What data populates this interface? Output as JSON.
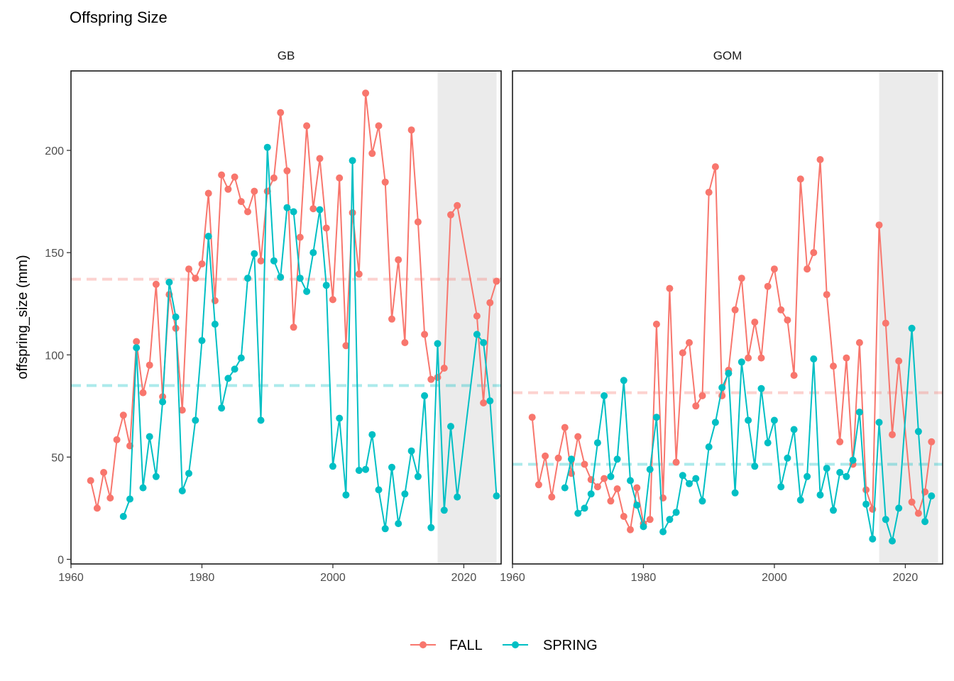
{
  "title": "Offspring Size",
  "ylabel": "offspring_size (mm)",
  "colors": {
    "FALL": "#F8766D",
    "SPRING": "#00BFC4",
    "shade": "#EBEBEB"
  },
  "chart_data": {
    "type": "line",
    "title": "Offspring Size",
    "xlabel": "",
    "ylabel": "offspring_size (mm)",
    "xlim": [
      1960,
      2025.7
    ],
    "ylim": [
      -2,
      234
    ],
    "x_ticks": [
      1960,
      1980,
      2000,
      2020
    ],
    "y_ticks": [
      0,
      50,
      100,
      150,
      200
    ],
    "legend": {
      "position": "bottom",
      "entries": [
        "FALL",
        "SPRING"
      ]
    },
    "grid": false,
    "shaded_x_range": [
      2016,
      2025
    ],
    "panels": [
      {
        "name": "GB",
        "reference_lines": {
          "FALL": 137,
          "SPRING": 85
        },
        "series": [
          {
            "name": "FALL",
            "points": [
              [
                1963,
                38.5
              ],
              [
                1964,
                25
              ],
              [
                1965,
                42.5
              ],
              [
                1966,
                30
              ],
              [
                1967,
                58.5
              ],
              [
                1968,
                70.5
              ],
              [
                1969,
                55.5
              ],
              [
                1970,
                106.5
              ],
              [
                1971,
                81.5
              ],
              [
                1972,
                95
              ],
              [
                1973,
                134.5
              ],
              [
                1974,
                79.5
              ],
              [
                1975,
                129.5
              ],
              [
                1976,
                113
              ],
              [
                1977,
                73
              ],
              [
                1978,
                142
              ],
              [
                1979,
                137.5
              ],
              [
                1980,
                144.5
              ],
              [
                1981,
                179
              ],
              [
                1982,
                126.5
              ],
              [
                1983,
                188
              ],
              [
                1984,
                181
              ],
              [
                1985,
                187
              ],
              [
                1986,
                175
              ],
              [
                1987,
                170
              ],
              [
                1988,
                180
              ],
              [
                1989,
                146
              ],
              [
                1990,
                180
              ],
              [
                1991,
                186.5
              ],
              [
                1992,
                218.5
              ],
              [
                1993,
                190
              ],
              [
                1994,
                113.5
              ],
              [
                1995,
                157.5
              ],
              [
                1996,
                212
              ],
              [
                1997,
                171.5
              ],
              [
                1998,
                196
              ],
              [
                1999,
                162
              ],
              [
                2000,
                127
              ],
              [
                2001,
                186.5
              ],
              [
                2002,
                104.5
              ],
              [
                2003,
                169.5
              ],
              [
                2004,
                139.5
              ],
              [
                2005,
                228
              ],
              [
                2006,
                198.5
              ],
              [
                2007,
                212
              ],
              [
                2008,
                184.5
              ],
              [
                2009,
                117.5
              ],
              [
                2010,
                146.5
              ],
              [
                2011,
                106
              ],
              [
                2012,
                210
              ],
              [
                2013,
                165
              ],
              [
                2014,
                110
              ],
              [
                2015,
                88
              ],
              [
                2016,
                89
              ],
              [
                2017,
                93.5
              ],
              [
                2018,
                168.5
              ],
              [
                2019,
                173
              ],
              [
                2022,
                119
              ],
              [
                2023,
                76.5
              ],
              [
                2024,
                125.5
              ],
              [
                2025,
                136
              ]
            ]
          },
          {
            "name": "SPRING",
            "points": [
              [
                1968,
                21
              ],
              [
                1969,
                29.5
              ],
              [
                1970,
                103.5
              ],
              [
                1971,
                35
              ],
              [
                1972,
                60
              ],
              [
                1973,
                40.5
              ],
              [
                1974,
                77
              ],
              [
                1975,
                135.5
              ],
              [
                1976,
                118.5
              ],
              [
                1977,
                33.5
              ],
              [
                1978,
                42
              ],
              [
                1979,
                68
              ],
              [
                1980,
                107
              ],
              [
                1981,
                158
              ],
              [
                1982,
                115
              ],
              [
                1983,
                74
              ],
              [
                1984,
                88.5
              ],
              [
                1985,
                93
              ],
              [
                1986,
                98.5
              ],
              [
                1987,
                137.5
              ],
              [
                1988,
                149.5
              ],
              [
                1989,
                68
              ],
              [
                1990,
                201.5
              ],
              [
                1991,
                146
              ],
              [
                1992,
                138
              ],
              [
                1993,
                172
              ],
              [
                1994,
                170
              ],
              [
                1995,
                137.5
              ],
              [
                1996,
                131
              ],
              [
                1997,
                150
              ],
              [
                1998,
                171
              ],
              [
                1999,
                134
              ],
              [
                2000,
                45.5
              ],
              [
                2001,
                69
              ],
              [
                2002,
                31.5
              ],
              [
                2003,
                195
              ],
              [
                2004,
                43.5
              ],
              [
                2005,
                44
              ],
              [
                2006,
                61
              ],
              [
                2007,
                34
              ],
              [
                2008,
                15
              ],
              [
                2009,
                45
              ],
              [
                2010,
                17.5
              ],
              [
                2011,
                32
              ],
              [
                2012,
                53
              ],
              [
                2013,
                40.5
              ],
              [
                2014,
                80
              ],
              [
                2015,
                15.5
              ],
              [
                2016,
                105.5
              ],
              [
                2017,
                24
              ],
              [
                2018,
                65
              ],
              [
                2019,
                30.5
              ],
              [
                2022,
                110
              ],
              [
                2023,
                106
              ],
              [
                2024,
                77.5
              ],
              [
                2025,
                31
              ]
            ]
          }
        ]
      },
      {
        "name": "GOM",
        "reference_lines": {
          "FALL": 81.5,
          "SPRING": 46.5
        },
        "series": [
          {
            "name": "FALL",
            "points": [
              [
                1963,
                69.5
              ],
              [
                1964,
                36.5
              ],
              [
                1965,
                50.5
              ],
              [
                1966,
                30.5
              ],
              [
                1967,
                49.5
              ],
              [
                1968,
                64.5
              ],
              [
                1969,
                42
              ],
              [
                1970,
                60
              ],
              [
                1971,
                46.5
              ],
              [
                1972,
                39
              ],
              [
                1973,
                35.5
              ],
              [
                1974,
                39.5
              ],
              [
                1975,
                28.5
              ],
              [
                1976,
                34.5
              ],
              [
                1977,
                21
              ],
              [
                1978,
                14.5
              ],
              [
                1979,
                35
              ],
              [
                1980,
                17.5
              ],
              [
                1981,
                19.5
              ],
              [
                1982,
                115
              ],
              [
                1983,
                30
              ],
              [
                1984,
                132.5
              ],
              [
                1985,
                47.5
              ],
              [
                1986,
                101
              ],
              [
                1987,
                106
              ],
              [
                1988,
                75
              ],
              [
                1989,
                80
              ],
              [
                1990,
                179.5
              ],
              [
                1991,
                192
              ],
              [
                1992,
                80
              ],
              [
                1993,
                92.5
              ],
              [
                1994,
                122
              ],
              [
                1995,
                137.5
              ],
              [
                1996,
                98.5
              ],
              [
                1997,
                116
              ],
              [
                1998,
                98.5
              ],
              [
                1999,
                133.5
              ],
              [
                2000,
                142
              ],
              [
                2001,
                122
              ],
              [
                2002,
                117
              ],
              [
                2003,
                90
              ],
              [
                2004,
                186
              ],
              [
                2005,
                142
              ],
              [
                2006,
                150
              ],
              [
                2007,
                195.5
              ],
              [
                2008,
                129.5
              ],
              [
                2009,
                94.5
              ],
              [
                2010,
                57.5
              ],
              [
                2011,
                98.5
              ],
              [
                2012,
                46.5
              ],
              [
                2013,
                106
              ],
              [
                2014,
                34
              ],
              [
                2015,
                24.5
              ],
              [
                2016,
                163.5
              ],
              [
                2017,
                115.5
              ],
              [
                2018,
                61
              ],
              [
                2019,
                97
              ],
              [
                2021,
                28
              ],
              [
                2022,
                22.5
              ],
              [
                2023,
                33
              ],
              [
                2024,
                57.5
              ]
            ]
          },
          {
            "name": "SPRING",
            "points": [
              [
                1968,
                35
              ],
              [
                1969,
                49
              ],
              [
                1970,
                22.5
              ],
              [
                1971,
                25
              ],
              [
                1972,
                32
              ],
              [
                1973,
                57
              ],
              [
                1974,
                80
              ],
              [
                1975,
                40.5
              ],
              [
                1976,
                49
              ],
              [
                1977,
                87.5
              ],
              [
                1978,
                38.5
              ],
              [
                1979,
                26.5
              ],
              [
                1980,
                16
              ],
              [
                1981,
                44
              ],
              [
                1982,
                69.5
              ],
              [
                1983,
                13.5
              ],
              [
                1984,
                19.5
              ],
              [
                1985,
                23
              ],
              [
                1986,
                41
              ],
              [
                1987,
                37
              ],
              [
                1988,
                39.5
              ],
              [
                1989,
                28.5
              ],
              [
                1990,
                55
              ],
              [
                1991,
                67
              ],
              [
                1992,
                84
              ],
              [
                1993,
                91
              ],
              [
                1994,
                32.5
              ],
              [
                1995,
                96.5
              ],
              [
                1996,
                68
              ],
              [
                1997,
                45.5
              ],
              [
                1998,
                83.5
              ],
              [
                1999,
                57
              ],
              [
                2000,
                68
              ],
              [
                2001,
                35.5
              ],
              [
                2002,
                49.5
              ],
              [
                2003,
                63.5
              ],
              [
                2004,
                29
              ],
              [
                2005,
                40.5
              ],
              [
                2006,
                98
              ],
              [
                2007,
                31.5
              ],
              [
                2008,
                44.5
              ],
              [
                2009,
                24
              ],
              [
                2010,
                42.5
              ],
              [
                2011,
                40.5
              ],
              [
                2012,
                48.5
              ],
              [
                2013,
                72
              ],
              [
                2014,
                27
              ],
              [
                2015,
                10
              ],
              [
                2016,
                67
              ],
              [
                2017,
                19.5
              ],
              [
                2018,
                9
              ],
              [
                2019,
                25
              ],
              [
                2021,
                113
              ],
              [
                2022,
                62.5
              ],
              [
                2023,
                18.5
              ],
              [
                2024,
                31
              ]
            ]
          }
        ]
      }
    ]
  }
}
